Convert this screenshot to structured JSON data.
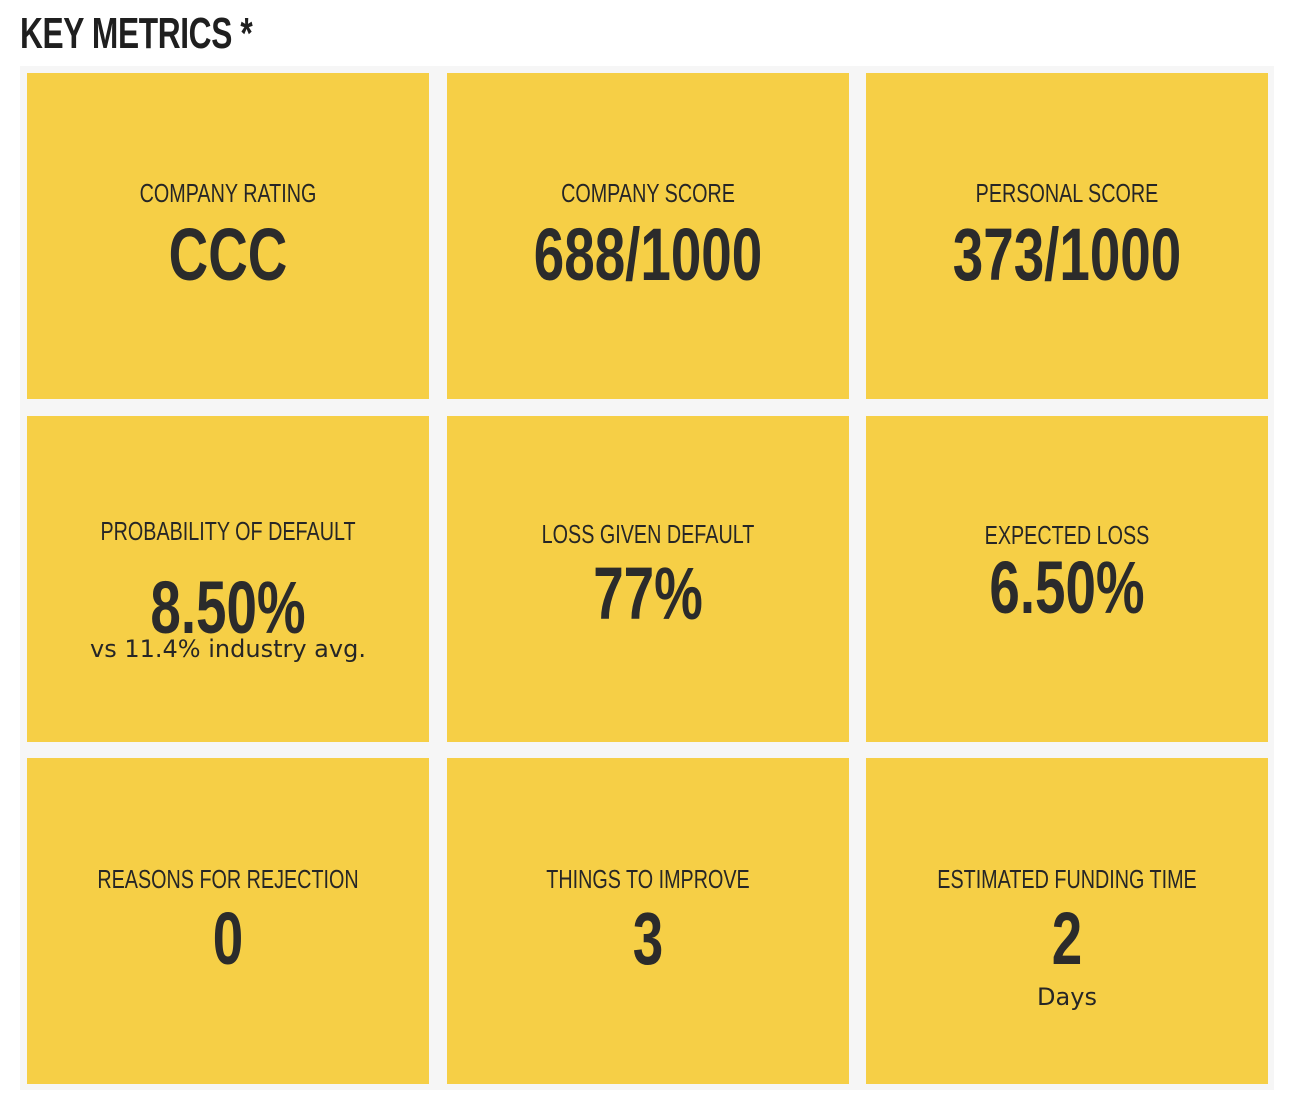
{
  "header": {
    "title": "KEY METRICS *"
  },
  "metrics": [
    {
      "label": "COMPANY RATING",
      "value": "CCC"
    },
    {
      "label": "COMPANY SCORE",
      "value": "688/1000"
    },
    {
      "label": "PERSONAL SCORE",
      "value": "373/1000"
    },
    {
      "label": "PROBABILITY OF DEFAULT",
      "value": "8.50%",
      "sub": "vs 11.4% industry avg."
    },
    {
      "label": "LOSS GIVEN DEFAULT",
      "value": "77%"
    },
    {
      "label": "EXPECTED LOSS",
      "value": "6.50%"
    },
    {
      "label": "REASONS FOR REJECTION",
      "value": "0"
    },
    {
      "label": "THINGS TO IMPROVE",
      "value": "3"
    },
    {
      "label": "ESTIMATED FUNDING TIME",
      "value": "2",
      "sub": "Days"
    }
  ],
  "colors": {
    "card_background": "#f6cf46",
    "text": "#262626",
    "grid_background": "#f6f6f6"
  }
}
